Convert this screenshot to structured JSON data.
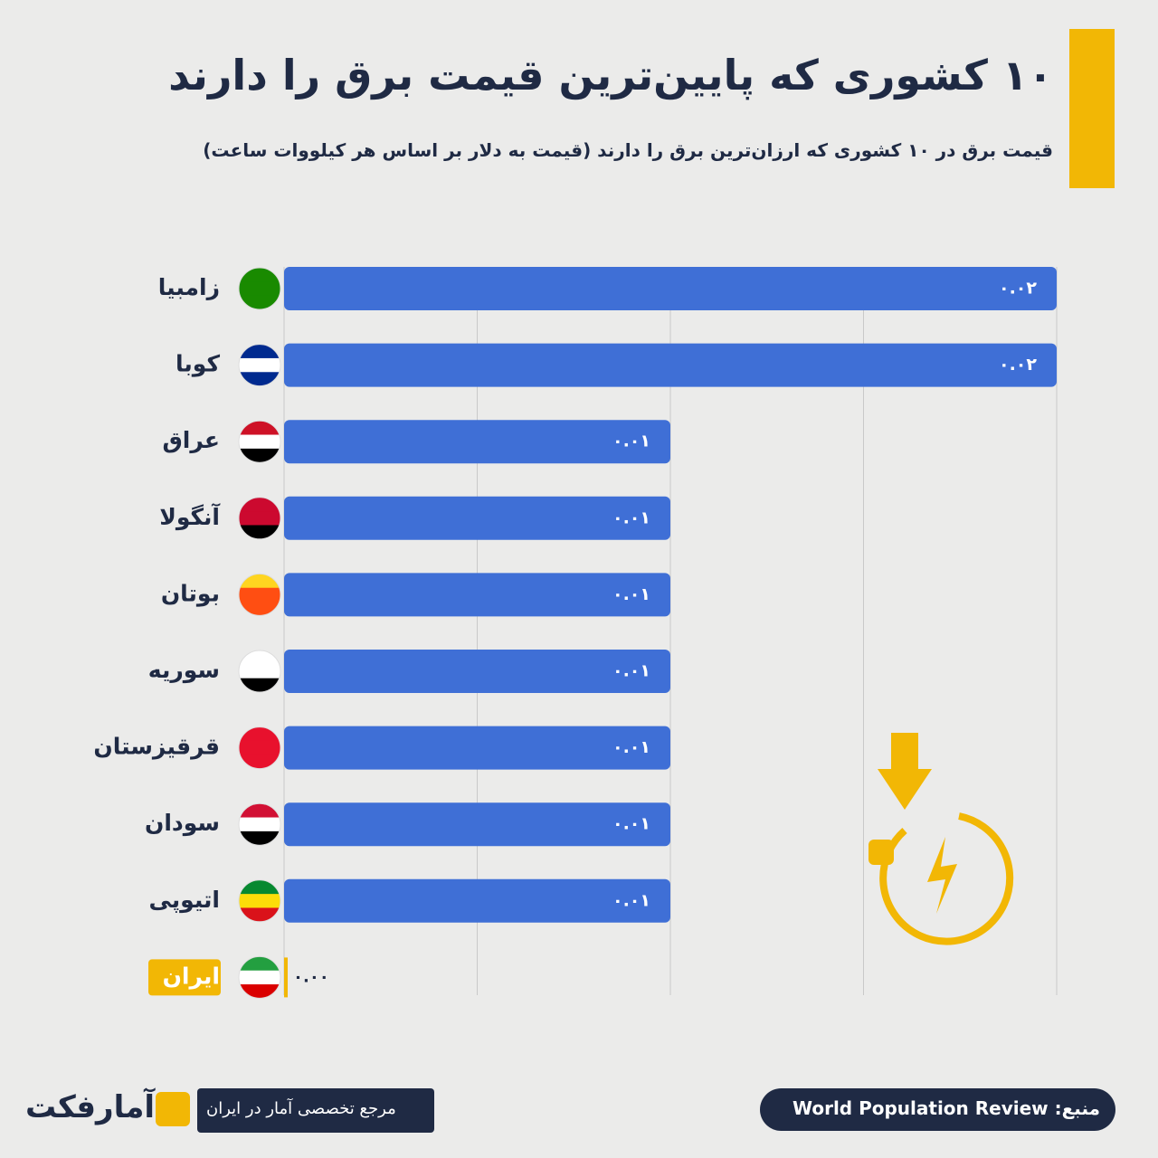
{
  "chart_data": {
    "type": "bar",
    "orientation": "horizontal",
    "title": "۱۰ کشوری که پایین‌ترین قیمت برق را دارند",
    "subtitle": "قیمت برق در ۱۰ کشوری که ارزان‌ترین برق را دارند (قیمت به دلار بر اساس هر کیلووات ساعت)",
    "categories": [
      "زامبیا",
      "کوبا",
      "عراق",
      "آنگولا",
      "بوتان",
      "سوریه",
      "قرقیزستان",
      "سودان",
      "اتیوپی",
      "ایران"
    ],
    "values": [
      0.02,
      0.02,
      0.01,
      0.01,
      0.01,
      0.01,
      0.01,
      0.01,
      0.01,
      0.0
    ],
    "value_labels": [
      "۰.۰۲",
      "۰.۰۲",
      "۰.۰۱",
      "۰.۰۱",
      "۰.۰۱",
      "۰.۰۱",
      "۰.۰۱",
      "۰.۰۱",
      "۰.۰۱",
      "۰.۰۰"
    ],
    "color": "#3f6fd6",
    "highlight": {
      "category": "ایران",
      "color": "#f2b705"
    },
    "xlim": [
      0,
      0.02
    ],
    "xticks": [
      0,
      0.005,
      0.01,
      0.015,
      0.02
    ],
    "grid": true
  },
  "footer": {
    "source": "منبع: World Population Review",
    "tagline": "مرجع تخصصی آمار در ایران",
    "logo": "آمارفکت"
  }
}
